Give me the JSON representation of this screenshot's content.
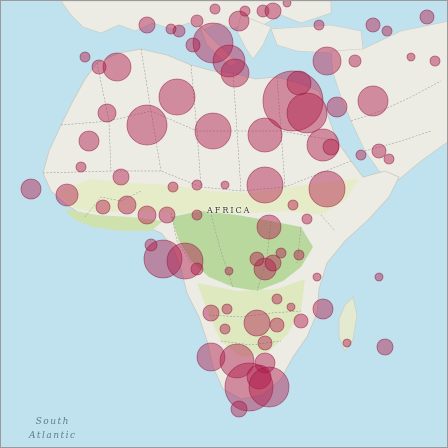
{
  "map": {
    "labels": {
      "continent": "AFRICA",
      "ocean_line1": "South",
      "ocean_line2": "Atlantic"
    },
    "colors": {
      "water": "#bfe2ee",
      "land": "#ecebe4",
      "savanna": "#e7ecc8",
      "forest": "#b9d89e",
      "border": "#8e8e8e",
      "point_fill": "#b0194a",
      "point_stroke": "#8e0f37"
    }
  }
}
